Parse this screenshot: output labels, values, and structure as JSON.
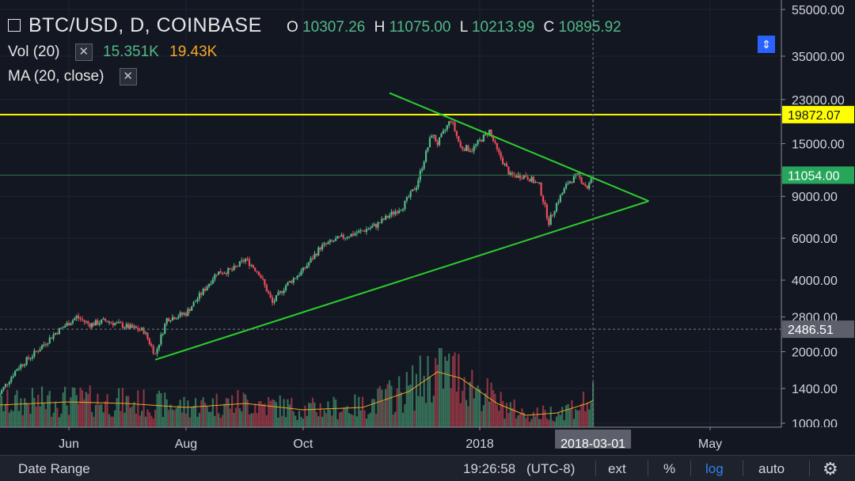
{
  "legend": {
    "symbol_line": "BTC/USD, D, COINBASE",
    "o_label": "O",
    "o_value": "10307.26",
    "h_label": "H",
    "h_value": "11075.00",
    "l_label": "L",
    "l_value": "10213.99",
    "c_label": "C",
    "c_value": "10895.92",
    "vol_label": "Vol (20)",
    "vol_value": "15.351K",
    "vol_ma_value": "19.43K",
    "ma_label": "MA (20, close)",
    "close_glyph": "✕"
  },
  "bottom_bar": {
    "date_range": "Date Range",
    "time": "19:26:58",
    "timezone": "(UTC-8)",
    "ext": "ext",
    "percent": "%",
    "log": "log",
    "auto": "auto",
    "settings_glyph": "⚙"
  },
  "colors": {
    "background": "#131722",
    "up_candle": "#53b987",
    "down_candle": "#eb4d5c",
    "trendline": "#2ccf2c",
    "horizontal_line": "#ffff00",
    "ma_line": "#f5a623"
  },
  "chart_data": {
    "type": "candlestick",
    "scale": "log",
    "y_ticks": [
      "55000.00",
      "35000.00",
      "23000.00",
      "15000.00",
      "9000.00",
      "6000.00",
      "4000.00",
      "2800.00",
      "2000.00",
      "1400.00",
      "1000.00"
    ],
    "y_tick_values": [
      55000,
      35000,
      23000,
      15000,
      9000,
      6000,
      4000,
      2800,
      2000,
      1400,
      1000
    ],
    "x_ticks": [
      "Jun",
      "Aug",
      "Oct",
      "2018",
      "May"
    ],
    "x_tick_dates": [
      "2017-06-01",
      "2017-08-01",
      "2017-10-01",
      "2018-01-01",
      "2018-05-01"
    ],
    "x_range": [
      "2017-04-25",
      "2018-06-15"
    ],
    "y_range": [
      1000,
      60000
    ],
    "price_labels": [
      {
        "text": "19872.07",
        "value": 19872.07,
        "style": "yellow"
      },
      {
        "text": "11054.00",
        "value": 11054,
        "style": "green"
      },
      {
        "text": "2486.51",
        "value": 2486.51,
        "style": "gray"
      }
    ],
    "crosshair": {
      "date_label": "2018-03-01",
      "date": "2018-03-01",
      "price": 2486.51
    },
    "horizontal_line": {
      "value": 19872.07
    },
    "trendlines": [
      {
        "from": {
          "date": "2017-07-16",
          "value": 1850
        },
        "to": {
          "date": "2018-03-30",
          "value": 8600
        }
      },
      {
        "from": {
          "date": "2017-11-15",
          "value": 24500
        },
        "to": {
          "date": "2018-03-30",
          "value": 8600
        }
      }
    ],
    "price_path": {
      "dates": [
        "2017-04-25",
        "2017-05-05",
        "2017-05-15",
        "2017-05-25",
        "2017-06-05",
        "2017-06-12",
        "2017-06-20",
        "2017-07-01",
        "2017-07-10",
        "2017-07-16",
        "2017-07-22",
        "2017-08-01",
        "2017-08-10",
        "2017-08-17",
        "2017-08-25",
        "2017-09-01",
        "2017-09-08",
        "2017-09-15",
        "2017-09-22",
        "2017-10-01",
        "2017-10-10",
        "2017-10-20",
        "2017-10-31",
        "2017-11-08",
        "2017-11-15",
        "2017-11-22",
        "2017-11-29",
        "2017-12-07",
        "2017-12-10",
        "2017-12-17",
        "2017-12-22",
        "2017-12-28",
        "2018-01-06",
        "2018-01-10",
        "2018-01-17",
        "2018-01-25",
        "2018-02-01",
        "2018-02-06",
        "2018-02-10",
        "2018-02-16",
        "2018-02-21",
        "2018-02-26",
        "2018-03-01"
      ],
      "values": [
        1300,
        1700,
        2000,
        2400,
        2800,
        2600,
        2700,
        2550,
        2450,
        1950,
        2750,
        2900,
        3600,
        4300,
        4400,
        4900,
        4300,
        3200,
        3800,
        4400,
        5500,
        6000,
        6400,
        6800,
        7500,
        8200,
        10000,
        16500,
        15000,
        19000,
        14500,
        14200,
        17000,
        14000,
        11000,
        11000,
        10000,
        7000,
        8400,
        10300,
        11000,
        9800,
        10900
      ]
    },
    "volume": {
      "ma_dates": [
        "2017-04-25",
        "2017-06-01",
        "2017-07-01",
        "2017-08-01",
        "2017-09-01",
        "2017-10-01",
        "2017-11-01",
        "2017-11-25",
        "2017-12-10",
        "2017-12-22",
        "2018-01-10",
        "2018-01-25",
        "2018-02-10",
        "2018-02-26",
        "2018-03-01"
      ],
      "ma_fraction": [
        0.28,
        0.32,
        0.3,
        0.25,
        0.3,
        0.22,
        0.25,
        0.45,
        0.7,
        0.62,
        0.3,
        0.15,
        0.18,
        0.3,
        0.34
      ]
    }
  }
}
